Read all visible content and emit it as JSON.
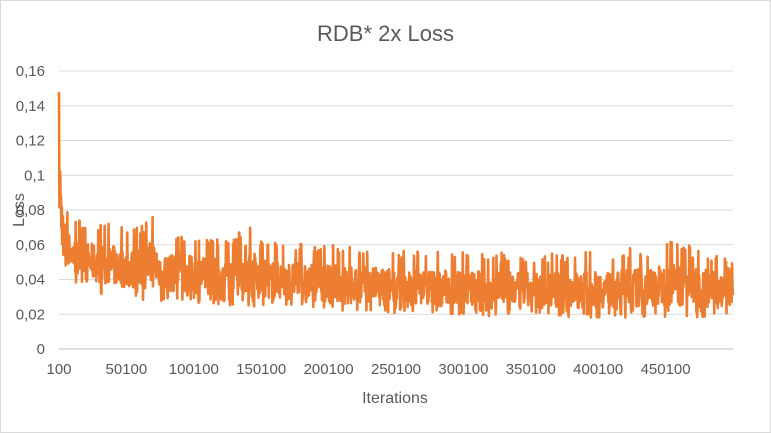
{
  "chart_data": {
    "type": "line",
    "title": "RDB* 2x Loss",
    "xlabel": "Iterations",
    "ylabel": "Loss",
    "ylim": [
      0,
      0.16
    ],
    "y_ticks": [
      0,
      0.02,
      0.04,
      0.06,
      0.08,
      0.1,
      0.12,
      0.14,
      0.16
    ],
    "y_tick_labels": [
      "0",
      "0,02",
      "0,04",
      "0,06",
      "0,08",
      "0,1",
      "0,12",
      "0,14",
      "0,16"
    ],
    "xlim": [
      100,
      500100
    ],
    "x_ticks": [
      100,
      50100,
      100100,
      150100,
      200100,
      250100,
      300100,
      350100,
      400100,
      450100
    ],
    "x_tick_labels": [
      "100",
      "50100",
      "100100",
      "150100",
      "200100",
      "250100",
      "300100",
      "350100",
      "400100",
      "450100"
    ],
    "grid": true,
    "legend": "none",
    "color": "#ed7d31",
    "series": [
      {
        "x": [
          100,
          1000,
          2000,
          3000,
          4000,
          6000,
          8000,
          10000,
          15000,
          20000,
          30000,
          40000,
          50000,
          60000,
          70000,
          80000,
          90000,
          100000,
          110000,
          120000,
          130000,
          140000,
          150000,
          160000,
          170000,
          180000,
          190000,
          200000,
          220000,
          240000,
          260000,
          280000,
          300000,
          320000,
          340000,
          360000,
          380000,
          400000,
          420000,
          440000,
          460000,
          480000,
          500000
        ],
        "y": [
          0.148,
          0.12,
          0.1,
          0.085,
          0.075,
          0.07,
          0.068,
          0.065,
          0.06,
          0.058,
          0.056,
          0.055,
          0.054,
          0.053,
          0.052,
          0.051,
          0.05,
          0.05,
          0.049,
          0.048,
          0.047,
          0.046,
          0.046,
          0.045,
          0.044,
          0.043,
          0.043,
          0.042,
          0.041,
          0.04,
          0.039,
          0.038,
          0.037,
          0.036,
          0.036,
          0.035,
          0.035,
          0.034,
          0.034,
          0.034,
          0.034,
          0.033,
          0.033
        ],
        "band_low": [
          0.06,
          0.056,
          0.052,
          0.05,
          0.048,
          0.044,
          0.042,
          0.04,
          0.036,
          0.034,
          0.032,
          0.03,
          0.029,
          0.028,
          0.028,
          0.027,
          0.027,
          0.026,
          0.026,
          0.025,
          0.025,
          0.024,
          0.024,
          0.023,
          0.023,
          0.022,
          0.022,
          0.022,
          0.021,
          0.021,
          0.02,
          0.02,
          0.019,
          0.019,
          0.018,
          0.018,
          0.018,
          0.018,
          0.018,
          0.018,
          0.018,
          0.018,
          0.018
        ],
        "band_high": [
          0.148,
          0.138,
          0.11,
          0.095,
          0.085,
          0.08,
          0.077,
          0.075,
          0.074,
          0.073,
          0.072,
          0.072,
          0.07,
          0.07,
          0.078,
          0.066,
          0.066,
          0.065,
          0.064,
          0.064,
          0.063,
          0.078,
          0.063,
          0.062,
          0.062,
          0.061,
          0.061,
          0.06,
          0.059,
          0.058,
          0.057,
          0.057,
          0.056,
          0.056,
          0.055,
          0.055,
          0.056,
          0.056,
          0.058,
          0.06,
          0.063,
          0.058,
          0.05
        ]
      }
    ]
  }
}
